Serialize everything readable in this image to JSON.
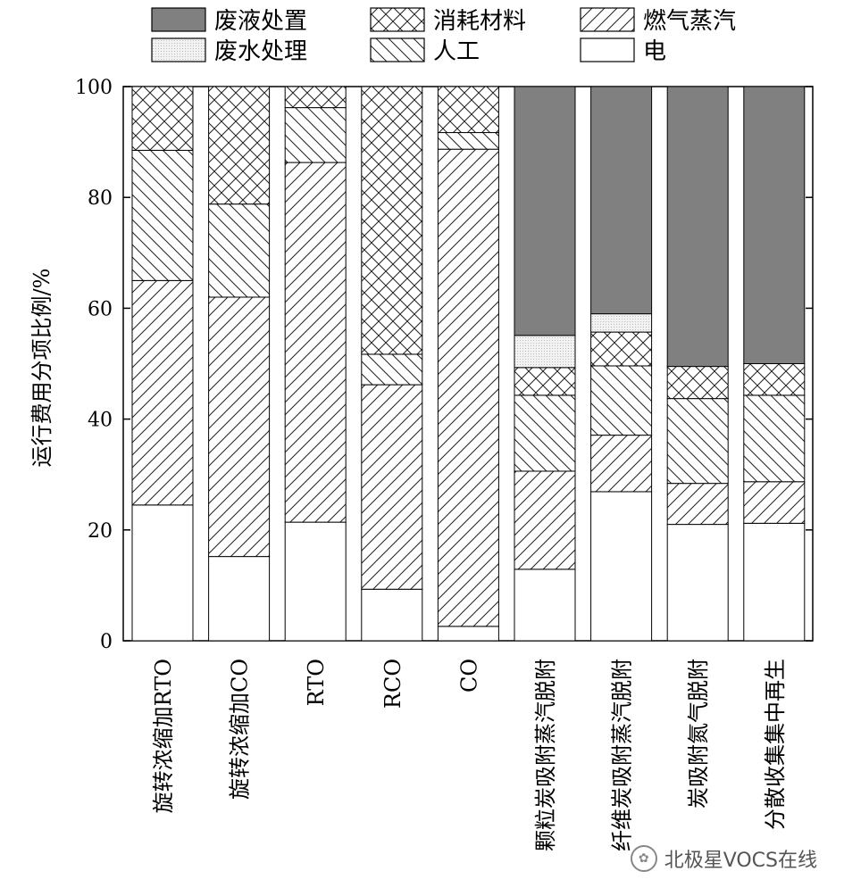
{
  "chart_data": {
    "type": "bar",
    "stacked": true,
    "ylabel": "运行费用分项比例/%",
    "ylim": [
      0,
      100
    ],
    "yticks": [
      0,
      20,
      40,
      60,
      80,
      100
    ],
    "categories": [
      "旋转浓缩加RTO",
      "旋转浓缩加CO",
      "RTO",
      "RCO",
      "CO",
      "颗粒炭吸附蒸汽脱附",
      "纤维炭吸附蒸汽脱附",
      "炭吸附氮气脱附",
      "分散收集集中再生"
    ],
    "legend": [
      "废液处置",
      "消耗材料",
      "燃气蒸汽",
      "废水处理",
      "人工",
      "电"
    ],
    "legend_position": "top",
    "series": [
      {
        "name": "电",
        "pattern": "white",
        "values": [
          24.5,
          15.2,
          21.4,
          9.3,
          2.6,
          12.9,
          26.9,
          21.0,
          21.2
        ]
      },
      {
        "name": "燃气蒸汽",
        "pattern": "diag-forward",
        "values": [
          40.5,
          46.8,
          64.9,
          36.9,
          86.1,
          17.7,
          10.2,
          7.4,
          7.5
        ]
      },
      {
        "name": "人工",
        "pattern": "diag-back",
        "values": [
          23.5,
          16.8,
          9.9,
          5.5,
          3.0,
          13.7,
          12.5,
          15.3,
          15.6
        ]
      },
      {
        "name": "消耗材料",
        "pattern": "crosshatch",
        "values": [
          11.5,
          21.2,
          3.8,
          48.3,
          8.3,
          5.0,
          6.1,
          5.8,
          5.7
        ]
      },
      {
        "name": "废水处理",
        "pattern": "dotted",
        "values": [
          0,
          0,
          0,
          0,
          0,
          5.8,
          3.3,
          0,
          0
        ]
      },
      {
        "name": "废液处置",
        "pattern": "dark",
        "values": [
          0,
          0,
          0,
          0,
          0,
          44.9,
          41.0,
          50.5,
          50.0
        ]
      }
    ],
    "grid": false
  },
  "legend_order": [
    "废液处置",
    "消耗材料",
    "燃气蒸汽",
    "废水处理",
    "人工",
    "电"
  ],
  "watermark": {
    "text": "北极星VOCS在线",
    "icon": "wechat-icon"
  }
}
